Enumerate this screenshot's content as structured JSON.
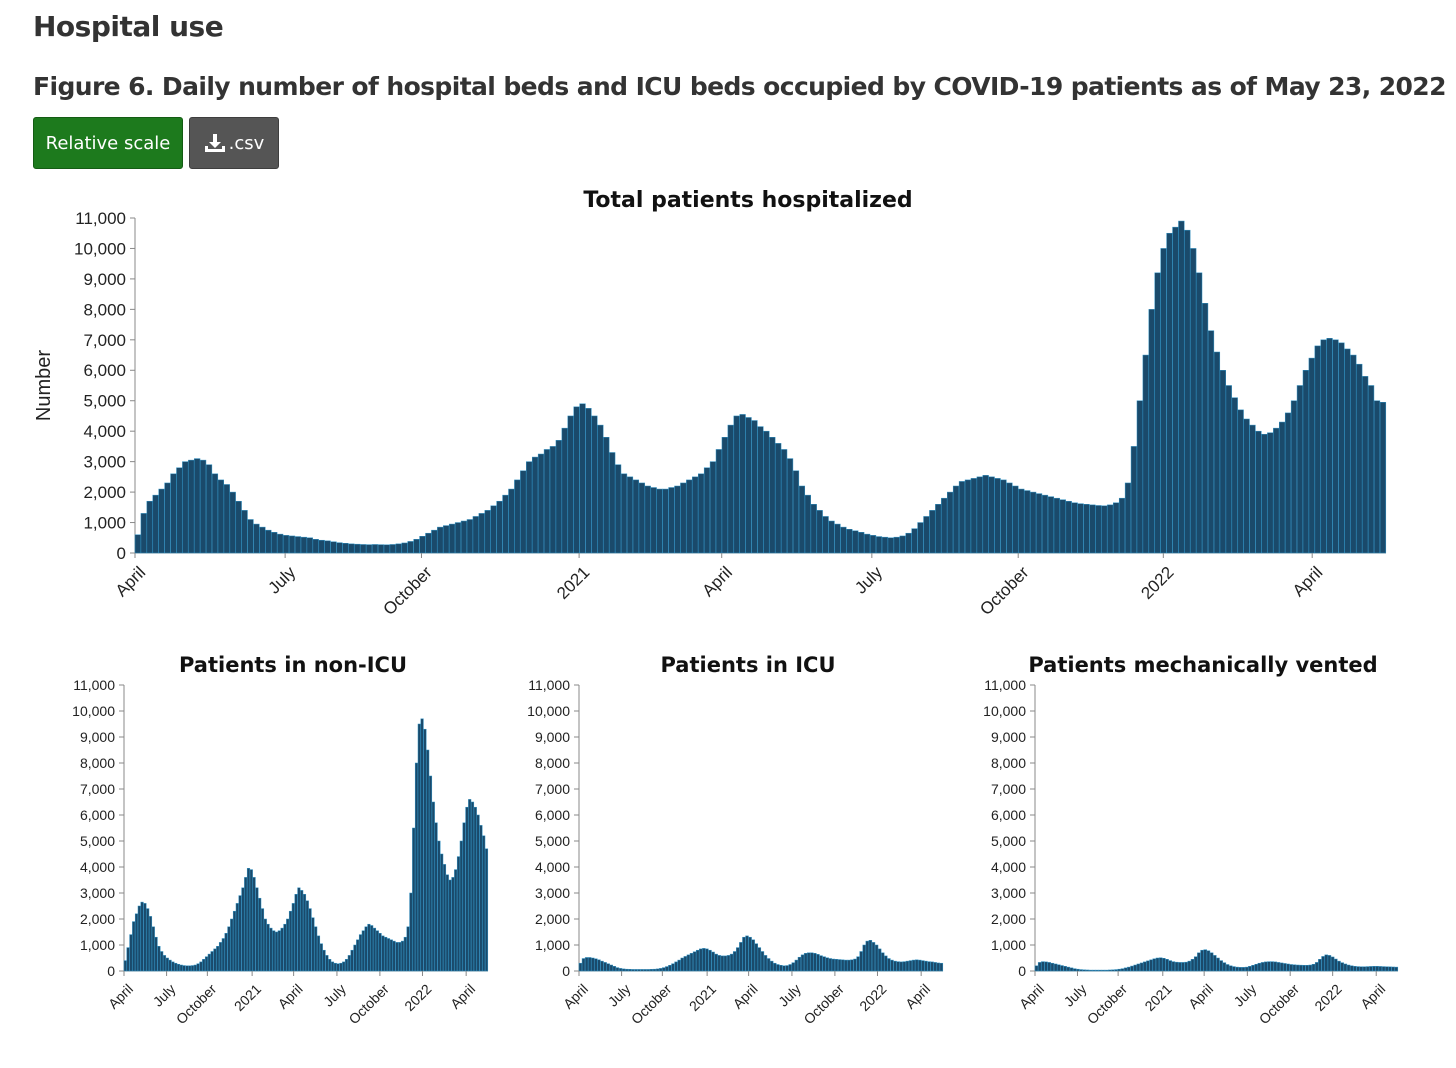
{
  "section": {
    "title": "Hospital use"
  },
  "figure": {
    "title": "Figure 6. Daily number of hospital beds and ICU beds occupied by COVID-19 patients as of May 23, 2022"
  },
  "buttons": {
    "relative_label": "Relative scale",
    "csv_label": ".csv",
    "csv_icon": "download-icon"
  },
  "colors": {
    "bar_fill": "#1a4a6b",
    "bar_stroke": "#2f8fc0",
    "relative_button": "#1d7a1d",
    "csv_button": "#555555"
  },
  "chart_data": [
    {
      "type": "bar",
      "title": "Total patients hospitalized",
      "ylabel": "Number",
      "xlabel": "",
      "ylim": [
        0,
        11000
      ],
      "yticks": [
        "0",
        "1,000",
        "2,000",
        "3,000",
        "4,000",
        "5,000",
        "6,000",
        "7,000",
        "8,000",
        "9,000",
        "10,000",
        "11,000"
      ],
      "xticks": [
        "April",
        "July",
        "October",
        "2021",
        "April",
        "July",
        "October",
        "2022",
        "April"
      ],
      "series": [
        {
          "values": [
            600,
            1300,
            1700,
            1900,
            2100,
            2300,
            2600,
            2800,
            3000,
            3050,
            3100,
            3050,
            2900,
            2600,
            2400,
            2250,
            2000,
            1700,
            1400,
            1100,
            950,
            850,
            750,
            680,
            620,
            580,
            560,
            540,
            520,
            500,
            450,
            420,
            400,
            370,
            340,
            320,
            300,
            290,
            280,
            275,
            280,
            275,
            270,
            280,
            300,
            330,
            380,
            450,
            550,
            650,
            750,
            850,
            900,
            950,
            1000,
            1050,
            1100,
            1200,
            1300,
            1400,
            1550,
            1700,
            1900,
            2100,
            2400,
            2700,
            3000,
            3150,
            3250,
            3400,
            3500,
            3700,
            4100,
            4500,
            4800,
            4900,
            4750,
            4500,
            4200,
            3800,
            3300,
            2900,
            2600,
            2500,
            2400,
            2300,
            2200,
            2150,
            2100,
            2100,
            2150,
            2200,
            2300,
            2400,
            2500,
            2600,
            2800,
            3000,
            3400,
            3800,
            4200,
            4500,
            4550,
            4450,
            4350,
            4150,
            4000,
            3800,
            3600,
            3400,
            3100,
            2700,
            2200,
            1900,
            1600,
            1400,
            1200,
            1050,
            950,
            850,
            780,
            730,
            680,
            620,
            580,
            540,
            520,
            500,
            520,
            560,
            650,
            800,
            1000,
            1200,
            1400,
            1600,
            1800,
            2000,
            2200,
            2350,
            2400,
            2450,
            2500,
            2550,
            2500,
            2450,
            2400,
            2300,
            2200,
            2100,
            2050,
            2000,
            1950,
            1900,
            1850,
            1800,
            1750,
            1700,
            1650,
            1620,
            1600,
            1580,
            1560,
            1550,
            1580,
            1650,
            1800,
            2300,
            3500,
            5000,
            6500,
            8000,
            9200,
            10000,
            10500,
            10700,
            10900,
            10600,
            10000,
            9200,
            8200,
            7300,
            6600,
            6000,
            5500,
            5100,
            4700,
            4400,
            4200,
            4000,
            3900,
            3950,
            4100,
            4300,
            4600,
            5000,
            5500,
            6000,
            6400,
            6800,
            7000,
            7050,
            7000,
            6900,
            6700,
            6500,
            6200,
            5800,
            5500,
            5000,
            4950
          ]
        }
      ]
    },
    {
      "type": "bar",
      "title": "Patients in non-ICU",
      "ylim": [
        0,
        11000
      ],
      "yticks": [
        "0",
        "1,000",
        "2,000",
        "3,000",
        "4,000",
        "5,000",
        "6,000",
        "7,000",
        "8,000",
        "9,000",
        "10,000",
        "11,000"
      ],
      "xticks": [
        "April",
        "July",
        "October",
        "2021",
        "April",
        "July",
        "October",
        "2022",
        "April"
      ],
      "series": [
        {
          "values": [
            400,
            900,
            1400,
            1900,
            2200,
            2500,
            2650,
            2600,
            2400,
            2100,
            1700,
            1300,
            950,
            750,
            600,
            500,
            420,
            350,
            300,
            260,
            230,
            210,
            200,
            200,
            210,
            230,
            280,
            350,
            450,
            550,
            650,
            750,
            850,
            950,
            1100,
            1250,
            1450,
            1700,
            2000,
            2300,
            2600,
            2900,
            3200,
            3600,
            3950,
            3900,
            3600,
            3200,
            2800,
            2400,
            2000,
            1800,
            1650,
            1550,
            1500,
            1550,
            1650,
            1800,
            2000,
            2300,
            2600,
            2950,
            3200,
            3100,
            2950,
            2700,
            2400,
            2050,
            1700,
            1350,
            1050,
            800,
            600,
            450,
            350,
            300,
            280,
            300,
            350,
            450,
            600,
            800,
            1000,
            1200,
            1400,
            1550,
            1700,
            1800,
            1750,
            1650,
            1550,
            1450,
            1350,
            1300,
            1250,
            1200,
            1150,
            1100,
            1100,
            1150,
            1300,
            1700,
            3000,
            5500,
            8000,
            9500,
            9700,
            9300,
            8500,
            7500,
            6500,
            5700,
            5000,
            4500,
            4100,
            3700,
            3500,
            3600,
            3900,
            4400,
            5000,
            5700,
            6300,
            6600,
            6500,
            6300,
            6000,
            5600,
            5200,
            4700
          ]
        }
      ]
    },
    {
      "type": "bar",
      "title": "Patients in ICU",
      "ylim": [
        0,
        11000
      ],
      "yticks": [
        "0",
        "1,000",
        "2,000",
        "3,000",
        "4,000",
        "5,000",
        "6,000",
        "7,000",
        "8,000",
        "9,000",
        "10,000",
        "11,000"
      ],
      "xticks": [
        "April",
        "July",
        "October",
        "2021",
        "April",
        "July",
        "October",
        "2022",
        "April"
      ],
      "series": [
        {
          "values": [
            300,
            480,
            520,
            520,
            500,
            470,
            430,
            380,
            330,
            280,
            230,
            180,
            130,
            100,
            80,
            70,
            65,
            60,
            60,
            60,
            60,
            60,
            60,
            65,
            70,
            80,
            100,
            130,
            170,
            220,
            280,
            350,
            420,
            500,
            560,
            620,
            680,
            740,
            800,
            850,
            870,
            850,
            800,
            730,
            650,
            600,
            580,
            580,
            600,
            650,
            750,
            900,
            1100,
            1300,
            1350,
            1300,
            1200,
            1050,
            900,
            750,
            600,
            480,
            380,
            300,
            250,
            220,
            200,
            210,
            250,
            320,
            420,
            530,
            620,
            680,
            700,
            700,
            680,
            640,
            590,
            550,
            510,
            480,
            460,
            450,
            440,
            430,
            420,
            420,
            430,
            460,
            550,
            750,
            1000,
            1150,
            1180,
            1100,
            1000,
            850,
            700,
            580,
            480,
            420,
            380,
            360,
            350,
            360,
            380,
            400,
            420,
            430,
            420,
            400,
            380,
            360,
            350,
            330,
            310,
            300
          ]
        }
      ]
    },
    {
      "type": "bar",
      "title": "Patients mechanically vented",
      "ylim": [
        0,
        11000
      ],
      "yticks": [
        "0",
        "1,000",
        "2,000",
        "3,000",
        "4,000",
        "5,000",
        "6,000",
        "7,000",
        "8,000",
        "9,000",
        "10,000",
        "11,000"
      ],
      "xticks": [
        "April",
        "July",
        "October",
        "2021",
        "April",
        "July",
        "October",
        "2022",
        "April"
      ],
      "series": [
        {
          "values": [
            200,
            330,
            360,
            350,
            330,
            300,
            270,
            240,
            210,
            180,
            150,
            120,
            90,
            70,
            55,
            45,
            40,
            35,
            35,
            35,
            35,
            35,
            35,
            40,
            45,
            55,
            70,
            90,
            120,
            150,
            190,
            230,
            270,
            310,
            350,
            390,
            430,
            470,
            500,
            510,
            490,
            450,
            400,
            360,
            340,
            330,
            330,
            340,
            380,
            450,
            550,
            700,
            800,
            820,
            780,
            700,
            600,
            500,
            400,
            320,
            250,
            200,
            170,
            150,
            140,
            140,
            150,
            180,
            220,
            260,
            300,
            330,
            350,
            360,
            360,
            350,
            330,
            310,
            290,
            270,
            250,
            240,
            230,
            225,
            220,
            220,
            230,
            260,
            330,
            450,
            560,
            620,
            600,
            540,
            460,
            380,
            320,
            270,
            230,
            200,
            180,
            170,
            165,
            165,
            170,
            175,
            180,
            180,
            175,
            170,
            165,
            160,
            155,
            150
          ]
        }
      ]
    }
  ]
}
